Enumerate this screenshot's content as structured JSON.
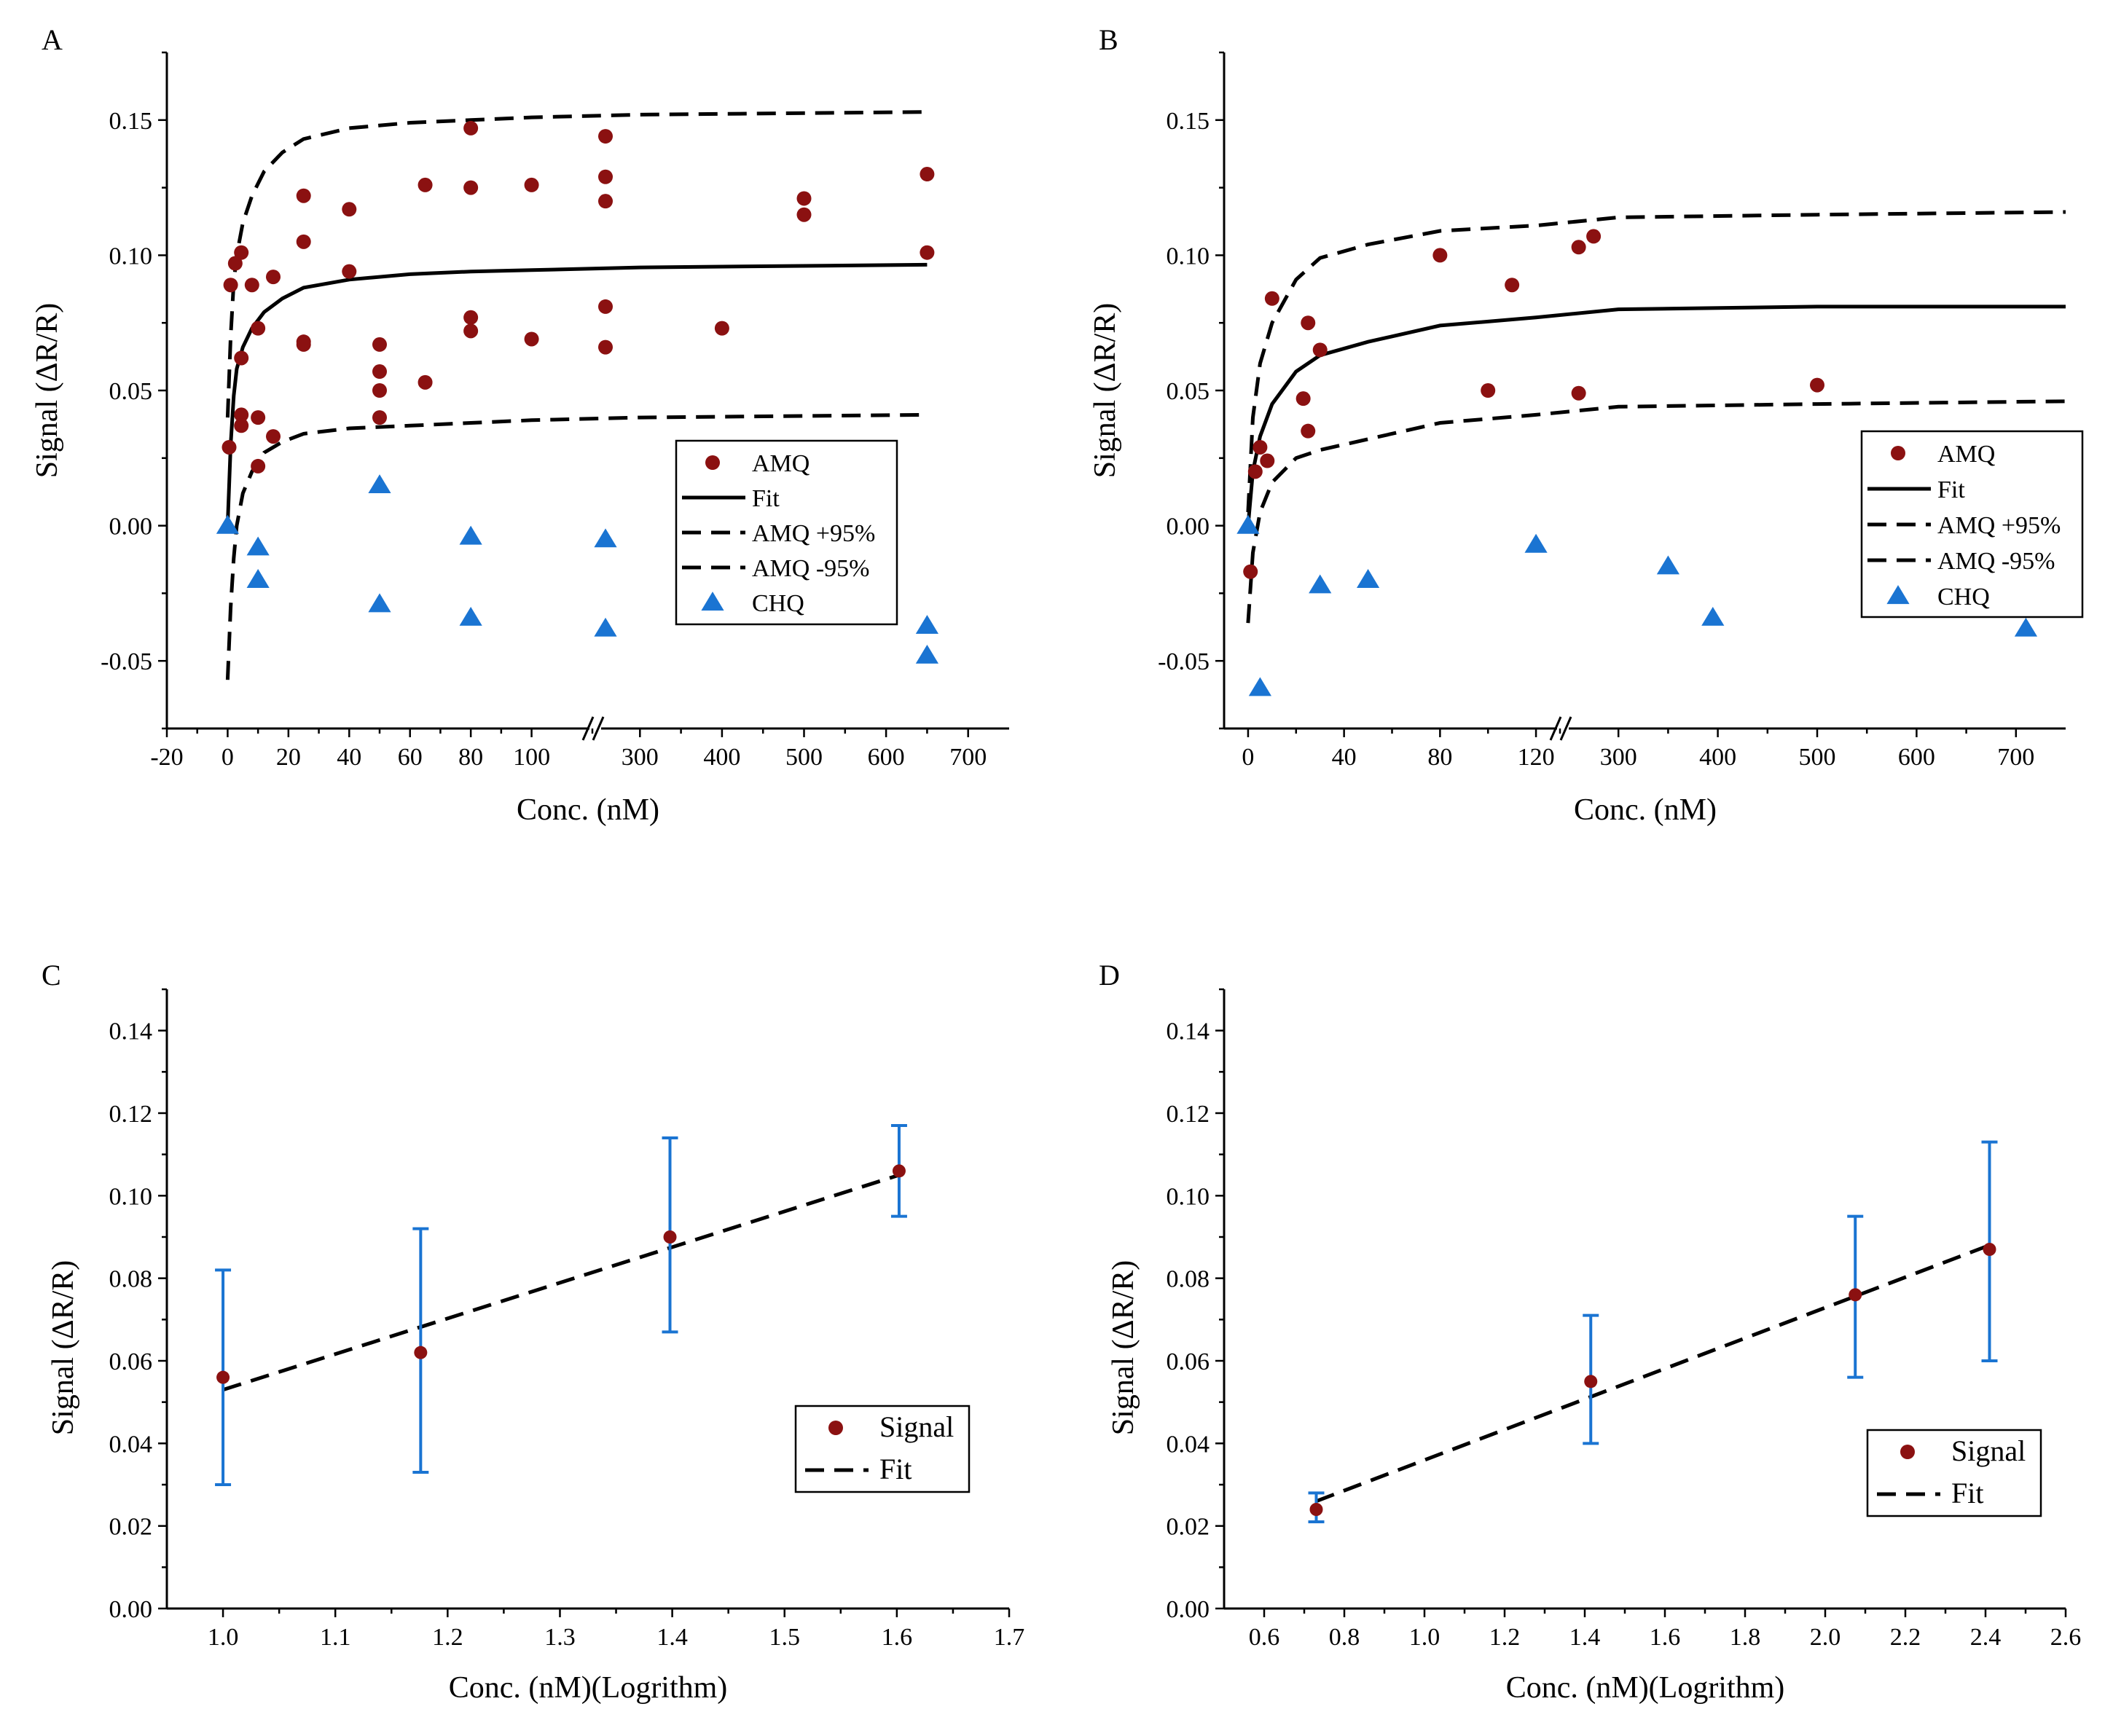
{
  "colors": {
    "amq": "#8b1111",
    "chq": "#1a74d2",
    "errorbar": "#1a74d2",
    "line": "#000000"
  },
  "chart_data": [
    {
      "panel": "A",
      "type": "scatter",
      "xlabel": "Conc. (nM)",
      "ylabel": "Signal (ΔR/R)",
      "x_axis_break": [
        120,
        250
      ],
      "xticks": [
        "-20",
        "0",
        "20",
        "40",
        "60",
        "80",
        "100",
        "300",
        "400",
        "500",
        "600",
        "700"
      ],
      "ylim": [
        -0.075,
        0.175
      ],
      "yticks": [
        "-0.05",
        "0.00",
        "0.05",
        "0.10",
        "0.15"
      ],
      "legend_position": "lower-right",
      "legend": [
        "AMQ",
        "Fit",
        "AMQ +95%",
        "AMQ -95%",
        "CHQ"
      ],
      "series": [
        {
          "name": "AMQ",
          "kind": "scatter",
          "marker": "circle",
          "points": [
            [
              0.5,
              0.029
            ],
            [
              1,
              0.089
            ],
            [
              2.5,
              0.097
            ],
            [
              4.5,
              0.101
            ],
            [
              4.5,
              0.062
            ],
            [
              4.5,
              0.041
            ],
            [
              4.5,
              0.037
            ],
            [
              8,
              0.089
            ],
            [
              10,
              0.073
            ],
            [
              10,
              0.04
            ],
            [
              10,
              0.022
            ],
            [
              15,
              0.092
            ],
            [
              15,
              0.033
            ],
            [
              25,
              0.122
            ],
            [
              25,
              0.105
            ],
            [
              25,
              0.068
            ],
            [
              25,
              0.067
            ],
            [
              40,
              0.117
            ],
            [
              40,
              0.094
            ],
            [
              50,
              0.067
            ],
            [
              50,
              0.057
            ],
            [
              50,
              0.05
            ],
            [
              50,
              0.04
            ],
            [
              65,
              0.126
            ],
            [
              65,
              0.053
            ],
            [
              80,
              0.147
            ],
            [
              80,
              0.125
            ],
            [
              80,
              0.077
            ],
            [
              80,
              0.072
            ],
            [
              100,
              0.126
            ],
            [
              100,
              0.069
            ],
            [
              258,
              0.144
            ],
            [
              258,
              0.129
            ],
            [
              258,
              0.12
            ],
            [
              258,
              0.081
            ],
            [
              258,
              0.066
            ],
            [
              400,
              0.073
            ],
            [
              500,
              0.121
            ],
            [
              500,
              0.115
            ],
            [
              650,
              0.13
            ],
            [
              650,
              0.101
            ]
          ]
        },
        {
          "name": "CHQ",
          "kind": "scatter",
          "marker": "triangle",
          "points": [
            [
              0,
              0.0
            ],
            [
              10,
              -0.008
            ],
            [
              10,
              -0.02
            ],
            [
              50,
              0.015
            ],
            [
              50,
              -0.029
            ],
            [
              80,
              -0.004
            ],
            [
              80,
              -0.034
            ],
            [
              258,
              -0.005
            ],
            [
              258,
              -0.038
            ],
            [
              650,
              -0.037
            ],
            [
              650,
              -0.048
            ]
          ]
        },
        {
          "name": "Fit",
          "kind": "line",
          "style": "solid",
          "points": [
            [
              0,
              0.0
            ],
            [
              1,
              0.03
            ],
            [
              2,
              0.048
            ],
            [
              3,
              0.058
            ],
            [
              5,
              0.066
            ],
            [
              8,
              0.073
            ],
            [
              12,
              0.079
            ],
            [
              18,
              0.084
            ],
            [
              25,
              0.088
            ],
            [
              40,
              0.091
            ],
            [
              60,
              0.093
            ],
            [
              80,
              0.094
            ],
            [
              100,
              0.0945
            ],
            [
              300,
              0.0955
            ],
            [
              650,
              0.0965
            ]
          ]
        },
        {
          "name": "AMQ +95%",
          "kind": "line",
          "style": "dashed",
          "points": [
            [
              0,
              0.04
            ],
            [
              1,
              0.07
            ],
            [
              2,
              0.09
            ],
            [
              3,
              0.1
            ],
            [
              5,
              0.112
            ],
            [
              8,
              0.122
            ],
            [
              12,
              0.131
            ],
            [
              18,
              0.138
            ],
            [
              25,
              0.143
            ],
            [
              40,
              0.147
            ],
            [
              60,
              0.149
            ],
            [
              80,
              0.15
            ],
            [
              100,
              0.151
            ],
            [
              300,
              0.152
            ],
            [
              650,
              0.153
            ]
          ]
        },
        {
          "name": "AMQ -95%",
          "kind": "line",
          "style": "dashed",
          "points": [
            [
              0,
              -0.057
            ],
            [
              1,
              -0.03
            ],
            [
              2,
              -0.012
            ],
            [
              3,
              0.0
            ],
            [
              5,
              0.012
            ],
            [
              8,
              0.02
            ],
            [
              12,
              0.027
            ],
            [
              18,
              0.031
            ],
            [
              25,
              0.034
            ],
            [
              40,
              0.036
            ],
            [
              60,
              0.037
            ],
            [
              80,
              0.038
            ],
            [
              100,
              0.039
            ],
            [
              300,
              0.04
            ],
            [
              650,
              0.041
            ]
          ]
        }
      ]
    },
    {
      "panel": "B",
      "type": "scatter",
      "xlabel": "Conc. (nM)",
      "ylabel": "Signal (ΔR/R)",
      "x_axis_break": [
        130,
        250
      ],
      "xticks": [
        "0",
        "40",
        "80",
        "120",
        "300",
        "400",
        "500",
        "600",
        "700"
      ],
      "ylim": [
        -0.075,
        0.175
      ],
      "yticks": [
        "-0.05",
        "0.00",
        "0.05",
        "0.10",
        "0.15"
      ],
      "legend_position": "lower-right",
      "legend": [
        "AMQ",
        "Fit",
        "AMQ +95%",
        "AMQ -95%",
        "CHQ"
      ],
      "series": [
        {
          "name": "AMQ",
          "kind": "scatter",
          "marker": "circle",
          "points": [
            [
              1,
              -0.017
            ],
            [
              3,
              0.02
            ],
            [
              5,
              0.029
            ],
            [
              8,
              0.024
            ],
            [
              10,
              0.084
            ],
            [
              23,
              0.047
            ],
            [
              25,
              0.075
            ],
            [
              25,
              0.035
            ],
            [
              30,
              0.065
            ],
            [
              80,
              0.1
            ],
            [
              100,
              0.05
            ],
            [
              110,
              0.089
            ],
            [
              260,
              0.103
            ],
            [
              260,
              0.049
            ],
            [
              275,
              0.107
            ],
            [
              500,
              0.052
            ]
          ]
        },
        {
          "name": "CHQ",
          "kind": "scatter",
          "marker": "triangle",
          "points": [
            [
              0,
              0.0
            ],
            [
              5,
              -0.06
            ],
            [
              30,
              -0.022
            ],
            [
              50,
              -0.02
            ],
            [
              120,
              -0.007
            ],
            [
              350,
              -0.015
            ],
            [
              395,
              -0.034
            ],
            [
              710,
              -0.038
            ]
          ]
        },
        {
          "name": "Fit",
          "kind": "line",
          "style": "solid",
          "points": [
            [
              0,
              0.0
            ],
            [
              2,
              0.02
            ],
            [
              5,
              0.033
            ],
            [
              10,
              0.045
            ],
            [
              20,
              0.057
            ],
            [
              30,
              0.063
            ],
            [
              50,
              0.068
            ],
            [
              80,
              0.074
            ],
            [
              120,
              0.077
            ],
            [
              300,
              0.08
            ],
            [
              500,
              0.081
            ],
            [
              750,
              0.081
            ]
          ]
        },
        {
          "name": "AMQ +95%",
          "kind": "line",
          "style": "dashed",
          "points": [
            [
              0,
              0.005
            ],
            [
              2,
              0.04
            ],
            [
              5,
              0.06
            ],
            [
              10,
              0.075
            ],
            [
              20,
              0.091
            ],
            [
              30,
              0.099
            ],
            [
              50,
              0.104
            ],
            [
              80,
              0.109
            ],
            [
              120,
              0.111
            ],
            [
              300,
              0.114
            ],
            [
              500,
              0.115
            ],
            [
              750,
              0.116
            ]
          ]
        },
        {
          "name": "AMQ -95%",
          "kind": "line",
          "style": "dashed",
          "points": [
            [
              0,
              -0.036
            ],
            [
              2,
              -0.01
            ],
            [
              5,
              0.005
            ],
            [
              10,
              0.016
            ],
            [
              20,
              0.025
            ],
            [
              30,
              0.028
            ],
            [
              50,
              0.032
            ],
            [
              80,
              0.038
            ],
            [
              120,
              0.041
            ],
            [
              300,
              0.044
            ],
            [
              500,
              0.045
            ],
            [
              750,
              0.046
            ]
          ]
        }
      ]
    },
    {
      "panel": "C",
      "type": "scatter",
      "xlabel": "Conc. (nM)(Logrithm)",
      "ylabel": "Signal (ΔR/R)",
      "xlim": [
        0.95,
        1.7
      ],
      "xticks": [
        "1.0",
        "1.1",
        "1.2",
        "1.3",
        "1.4",
        "1.5",
        "1.6",
        "1.7"
      ],
      "ylim": [
        0.0,
        0.15
      ],
      "yticks": [
        "0.00",
        "0.02",
        "0.04",
        "0.06",
        "0.08",
        "0.10",
        "0.12",
        "0.14"
      ],
      "legend_position": "lower-right",
      "legend": [
        "Signal",
        "Fit"
      ],
      "series": [
        {
          "name": "Signal",
          "kind": "scatter",
          "marker": "circle",
          "points": [
            [
              1.0,
              0.056
            ],
            [
              1.176,
              0.062
            ],
            [
              1.398,
              0.09
            ],
            [
              1.602,
              0.106
            ]
          ],
          "errors": [
            [
              0.03,
              0.082
            ],
            [
              0.033,
              0.092
            ],
            [
              0.067,
              0.114
            ],
            [
              0.095,
              0.117
            ]
          ]
        },
        {
          "name": "Fit",
          "kind": "line",
          "style": "dashed",
          "points": [
            [
              1.0,
              0.053
            ],
            [
              1.602,
              0.105
            ]
          ]
        }
      ]
    },
    {
      "panel": "D",
      "type": "scatter",
      "xlabel": "Conc. (nM)(Logrithm)",
      "ylabel": "Signal (ΔR/R)",
      "xlim": [
        0.5,
        2.6
      ],
      "xticks": [
        "0.6",
        "0.8",
        "1.0",
        "1.2",
        "1.4",
        "1.6",
        "1.8",
        "2.0",
        "2.2",
        "2.4",
        "2.6"
      ],
      "ylim": [
        0.0,
        0.15
      ],
      "yticks": [
        "0.00",
        "0.02",
        "0.04",
        "0.06",
        "0.08",
        "0.10",
        "0.12",
        "0.14"
      ],
      "legend_position": "lower-right",
      "legend": [
        "Signal",
        "Fit"
      ],
      "series": [
        {
          "name": "Signal",
          "kind": "scatter",
          "marker": "circle",
          "points": [
            [
              0.73,
              0.024
            ],
            [
              1.415,
              0.055
            ],
            [
              2.075,
              0.076
            ],
            [
              2.41,
              0.087
            ]
          ],
          "errors": [
            [
              0.021,
              0.028
            ],
            [
              0.04,
              0.071
            ],
            [
              0.056,
              0.095
            ],
            [
              0.06,
              0.113
            ]
          ]
        },
        {
          "name": "Fit",
          "kind": "line",
          "style": "dashed",
          "points": [
            [
              0.73,
              0.026
            ],
            [
              2.41,
              0.088
            ]
          ]
        }
      ]
    }
  ]
}
